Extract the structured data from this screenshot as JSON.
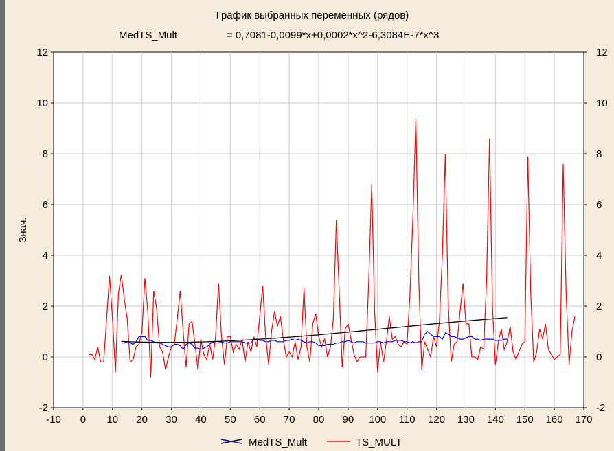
{
  "chart_data": {
    "type": "line",
    "title": "График выбранных переменных (рядов)",
    "subtitle_name": "MedTS_Mult",
    "subtitle_formula": "= 0,7081-0,0099*x+0,0002*x^2-6,3084E-7*x^3",
    "ylabel": "Знач.",
    "xlabel": "",
    "xlim": [
      -10,
      170
    ],
    "ylim": [
      -2,
      12
    ],
    "x_ticks": [
      -10,
      0,
      10,
      20,
      30,
      40,
      50,
      60,
      70,
      80,
      90,
      100,
      110,
      120,
      130,
      140,
      150,
      160,
      170
    ],
    "y_ticks": [
      -2,
      0,
      2,
      4,
      6,
      8,
      10,
      12
    ],
    "grid": true,
    "legend": "bottom",
    "colors": {
      "MedTS_Mult": "#0000ff",
      "TS_MULT": "#ff0000",
      "fit": "#000000",
      "background": "#f7ecdc"
    },
    "series": [
      {
        "name": "MedTS_Mult",
        "x_start": 13,
        "values": [
          0.55,
          0.55,
          0.6,
          0.55,
          0.5,
          0.6,
          0.8,
          0.8,
          0.8,
          0.65,
          0.65,
          0.6,
          0.55,
          0.55,
          0.5,
          0.45,
          0.4,
          0.4,
          0.5,
          0.5,
          0.45,
          0.3,
          0.5,
          0.55,
          0.5,
          0.35,
          0.35,
          0.3,
          0.35,
          0.4,
          0.5,
          0.6,
          0.55,
          0.55,
          0.6,
          0.55,
          0.55,
          0.6,
          0.6,
          0.6,
          0.6,
          0.6,
          0.55,
          0.55,
          0.55,
          0.7,
          0.7,
          0.65,
          0.65,
          0.6,
          0.6,
          0.65,
          0.65,
          0.6,
          0.6,
          0.6,
          0.65,
          0.65,
          0.7,
          0.65,
          0.7,
          0.65,
          0.6,
          0.55,
          0.6,
          0.6,
          0.55,
          0.45,
          0.45,
          0.45,
          0.5,
          0.5,
          0.5,
          0.55,
          0.55,
          0.6,
          0.6,
          0.65,
          0.6,
          0.55,
          0.6,
          0.6,
          0.6,
          0.55,
          0.55,
          0.55,
          0.55,
          0.6,
          0.6,
          0.55,
          0.6,
          0.6,
          0.6,
          0.65,
          0.65,
          0.65,
          0.6,
          0.6,
          0.55,
          0.6,
          0.55,
          0.6,
          0.6,
          0.9,
          1.0,
          0.9,
          0.8,
          0.8,
          0.8,
          0.7,
          0.95,
          0.9,
          0.8,
          0.8,
          0.75,
          0.7,
          0.7,
          0.75,
          0.8,
          0.8,
          0.7,
          0.7,
          0.65,
          0.7,
          0.7,
          0.7,
          0.7,
          0.65,
          0.65,
          0.65,
          0.7,
          0.7
        ]
      },
      {
        "name": "TS_MULT",
        "x_start": 2,
        "values": [
          0.1,
          0.1,
          -0.1,
          0.4,
          -0.2,
          -0.2,
          1.5,
          3.2,
          1.5,
          -0.6,
          2.5,
          3.25,
          2.3,
          1.5,
          -0.2,
          -0.1,
          0.4,
          0.5,
          1.0,
          3.1,
          1.8,
          -0.8,
          2.6,
          1.9,
          0.4,
          0.2,
          -0.5,
          0.0,
          0.4,
          0.5,
          1.5,
          2.6,
          1.0,
          -0.4,
          1.3,
          1.4,
          0.5,
          -0.5,
          0.7,
          0.1,
          -0.1,
          0.5,
          -0.1,
          0.8,
          2.9,
          0.8,
          -0.3,
          0.8,
          0.8,
          0.2,
          0.5,
          0.3,
          0.7,
          -0.2,
          0.6,
          0.2,
          0.8,
          0.4,
          1.6,
          2.8,
          0.8,
          -0.3,
          1.0,
          1.8,
          1.2,
          1.6,
          0.7,
          0.0,
          0.2,
          0.0,
          0.6,
          -0.1,
          0.4,
          2.7,
          0.4,
          -0.2,
          1.3,
          1.7,
          0.8,
          0.4,
          0.7,
          0.0,
          0.4,
          1.5,
          5.4,
          2.5,
          -0.4,
          1.1,
          1.3,
          0.7,
          0.1,
          -0.2,
          0.0,
          0.0,
          0.0,
          3.0,
          6.8,
          1.8,
          -0.6,
          0.6,
          -0.2,
          0.6,
          1.6,
          0.7,
          0.8,
          0.5,
          0.4,
          0.6,
          0.5,
          2.5,
          5.5,
          9.4,
          3.0,
          -0.5,
          0.6,
          0.3,
          0.0,
          0.8,
          0.4,
          1.4,
          4.0,
          8.0,
          2.0,
          -0.2,
          0.5,
          0.6,
          1.8,
          2.9,
          1.3,
          1.3,
          0.0,
          0.0,
          -0.1,
          0.4,
          0.3,
          3.0,
          8.6,
          2.0,
          -0.3,
          0.6,
          1.1,
          0.3,
          0.6,
          1.2,
          0.2,
          -0.1,
          0.2,
          0.5,
          0.6,
          7.9,
          2.5,
          -0.2,
          0.2,
          1.1,
          0.7,
          1.3,
          0.3,
          0.1,
          -0.1,
          0.0,
          0.1,
          7.6,
          2.5,
          -0.3,
          1.0,
          1.6
        ]
      }
    ],
    "fit_curve": {
      "coefficients": [
        0.7081,
        -0.0099,
        0.0002,
        -6.3084e-07
      ],
      "x_range": [
        13,
        144
      ]
    }
  }
}
